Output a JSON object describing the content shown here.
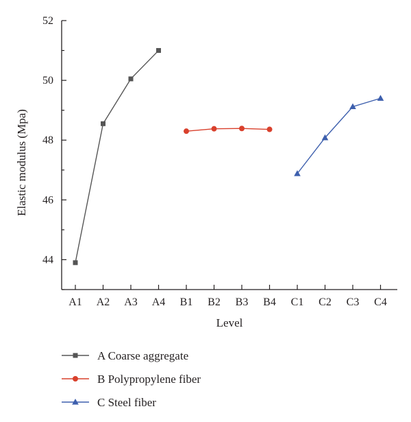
{
  "chart_data": {
    "type": "line",
    "categories": [
      "A1",
      "A2",
      "A3",
      "A4",
      "B1",
      "B2",
      "B3",
      "B4",
      "C1",
      "C2",
      "C3",
      "C4"
    ],
    "series": [
      {
        "name": "A Coarse aggregate",
        "color": "#555555",
        "marker": "square",
        "x": [
          "A1",
          "A2",
          "A3",
          "A4"
        ],
        "values": [
          43.9,
          48.55,
          50.05,
          51.0
        ]
      },
      {
        "name": "B Polypropylene fiber",
        "color": "#d9402c",
        "marker": "circle",
        "x": [
          "B1",
          "B2",
          "B3",
          "B4"
        ],
        "values": [
          48.3,
          48.38,
          48.39,
          48.36
        ]
      },
      {
        "name": "C Steel fiber",
        "color": "#3d5fad",
        "marker": "triangle",
        "x": [
          "C1",
          "C2",
          "C3",
          "C4"
        ],
        "values": [
          46.88,
          48.08,
          49.12,
          49.4
        ]
      }
    ],
    "title": "",
    "xlabel": "Level",
    "ylabel": "Elastic modulus (Mpa)",
    "ylim": [
      43,
      52
    ],
    "yticks": [
      44,
      46,
      48,
      50,
      52
    ],
    "grid": false,
    "legend_position": "bottom"
  }
}
